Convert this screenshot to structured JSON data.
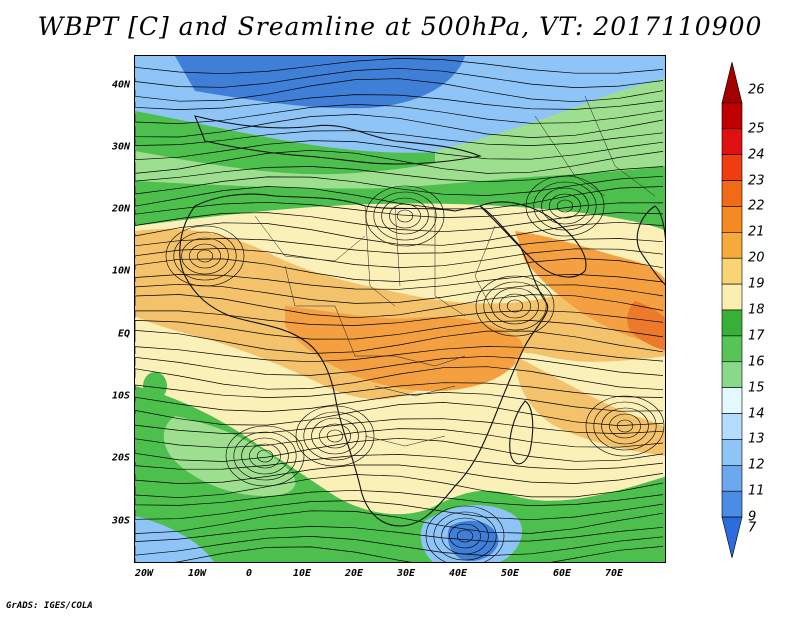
{
  "title": "WBPT [C] and Sreamline at 500hPa, VT: 2017110900",
  "credit": "GrADS: IGES/COLA",
  "lat_labels": [
    "40N",
    "30N",
    "20N",
    "10N",
    "EQ",
    "10S",
    "20S",
    "30S"
  ],
  "lon_labels": [
    "20W",
    "10W",
    "0",
    "10E",
    "20E",
    "30E",
    "40E",
    "50E",
    "60E",
    "70E"
  ],
  "colorbar": {
    "levels": [
      "26",
      "25",
      "24",
      "23",
      "22",
      "21",
      "20",
      "19",
      "18",
      "17",
      "16",
      "15",
      "14",
      "13",
      "12",
      "11",
      "9",
      "7"
    ],
    "colors": [
      "#a50000",
      "#c00000",
      "#e01010",
      "#f03c10",
      "#f06a18",
      "#f58a20",
      "#f6aa3c",
      "#f9d474",
      "#fbefb0",
      "#36b036",
      "#56c456",
      "#8ad88a",
      "#e4f8ff",
      "#b4dcff",
      "#8ec4f6",
      "#6ca8ee",
      "#4a8ce6",
      "#2c6cde"
    ]
  },
  "map": {
    "lon_range": [
      -20,
      80
    ],
    "lat_range": [
      -37,
      45
    ],
    "field_colors": {
      "cold": "#3f7fd8",
      "cool": "#8ec4f6",
      "green": "#4cbf4c",
      "light_green": "#9ddf8f",
      "pale": "#fbf0b8",
      "warm": "#f4c26a",
      "orange": "#f4a040",
      "deep_orange": "#ec7a2a"
    }
  }
}
